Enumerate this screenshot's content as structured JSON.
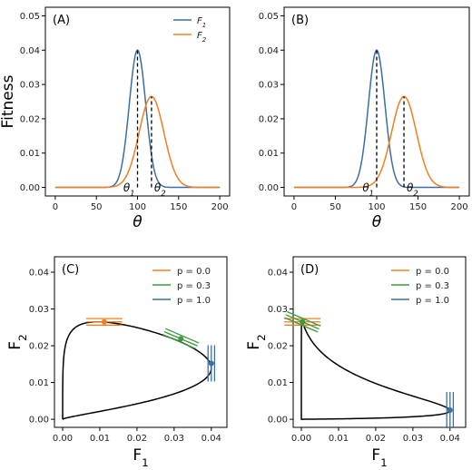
{
  "colors": {
    "blue": "#3b6ea5",
    "orange": "#f07f1f",
    "green": "#3c9a3c",
    "black": "#000000"
  },
  "chart_data": [
    {
      "panel": "(A)",
      "type": "line",
      "xlabel": "θ",
      "ylabel": "Fitness",
      "xlim": [
        -12,
        212
      ],
      "ylim": [
        -0.0025,
        0.0525
      ],
      "xticks": [
        0,
        50,
        100,
        150,
        200
      ],
      "yticks": [
        0.0,
        0.01,
        0.02,
        0.03,
        0.04,
        0.05
      ],
      "ytick_labels": [
        "0.00",
        "0.01",
        "0.02",
        "0.03",
        "0.04",
        "0.05"
      ],
      "legend_position": "top-right",
      "series": [
        {
          "name": "F",
          "sub": "1",
          "color": "blue",
          "mu": 100,
          "sigma": 10,
          "peak": 0.04
        },
        {
          "name": "F",
          "sub": "2",
          "color": "orange",
          "mu": 117,
          "sigma": 15,
          "peak": 0.0265
        }
      ],
      "optima": [
        {
          "label": "θ",
          "sub": "1",
          "x": 100,
          "side": "left"
        },
        {
          "label": "θ",
          "sub": "2",
          "x": 117,
          "side": "right"
        }
      ]
    },
    {
      "panel": "(B)",
      "type": "line",
      "xlabel": "θ",
      "ylabel": "",
      "xlim": [
        -12,
        212
      ],
      "ylim": [
        -0.0025,
        0.0525
      ],
      "xticks": [
        0,
        50,
        100,
        150,
        200
      ],
      "yticks": [
        0.0,
        0.01,
        0.02,
        0.03,
        0.04,
        0.05
      ],
      "ytick_labels": [
        "0.00",
        "0.01",
        "0.02",
        "0.03",
        "0.04",
        "0.05"
      ],
      "series": [
        {
          "color": "blue",
          "mu": 100,
          "sigma": 10,
          "peak": 0.04
        },
        {
          "color": "orange",
          "mu": 133,
          "sigma": 15,
          "peak": 0.0265
        }
      ],
      "optima": [
        {
          "label": "θ",
          "sub": "1",
          "x": 100,
          "side": "left"
        },
        {
          "label": "θ",
          "sub": "2",
          "x": 133,
          "side": "right"
        }
      ]
    },
    {
      "panel": "(C)",
      "type": "line",
      "xlabel": "F",
      "xlabel_sub": "1",
      "ylabel": "F",
      "ylabel_sub": "2",
      "xlim": [
        -0.0022,
        0.0442
      ],
      "ylim": [
        -0.0022,
        0.0442
      ],
      "xticks": [
        0.0,
        0.01,
        0.02,
        0.03,
        0.04
      ],
      "xtick_labels": [
        "0.00",
        "0.01",
        "0.02",
        "0.03",
        "0.04"
      ],
      "yticks": [
        0.0,
        0.01,
        0.02,
        0.03,
        0.04
      ],
      "ytick_labels": [
        "0.00",
        "0.01",
        "0.02",
        "0.03",
        "0.04"
      ],
      "legend_position": "top-right",
      "legend": [
        {
          "label": "p = 0.0",
          "color": "orange"
        },
        {
          "label": "p = 0.3",
          "color": "green"
        },
        {
          "label": "p = 1.0",
          "color": "blue"
        }
      ],
      "curve": {
        "mu1": 100,
        "s1": 10,
        "A1": 0.04,
        "mu2": 117,
        "s2": 15,
        "A2": 0.0265,
        "theta_min": 0,
        "theta_max": 200
      },
      "optimum_points": [
        {
          "p": 0.0,
          "x": 0.0112,
          "y": 0.0265,
          "color": "orange"
        },
        {
          "p": 0.3,
          "x": 0.0318,
          "y": 0.0219,
          "color": "green"
        },
        {
          "p": 1.0,
          "x": 0.04,
          "y": 0.0152,
          "color": "blue"
        }
      ]
    },
    {
      "panel": "(D)",
      "type": "line",
      "xlabel": "F",
      "xlabel_sub": "1",
      "ylabel": "F",
      "ylabel_sub": "2",
      "xlim": [
        -0.0022,
        0.0442
      ],
      "ylim": [
        -0.0022,
        0.0442
      ],
      "xticks": [
        0.0,
        0.01,
        0.02,
        0.03,
        0.04
      ],
      "xtick_labels": [
        "0.00",
        "0.01",
        "0.02",
        "0.03",
        "0.04"
      ],
      "yticks": [
        0.0,
        0.01,
        0.02,
        0.03,
        0.04
      ],
      "ytick_labels": [
        "0.00",
        "0.01",
        "0.02",
        "0.03",
        "0.04"
      ],
      "legend_position": "top-right",
      "legend": [
        {
          "label": "p = 0.0",
          "color": "orange"
        },
        {
          "label": "p = 0.3",
          "color": "green"
        },
        {
          "label": "p = 1.0",
          "color": "blue"
        }
      ],
      "curve": {
        "mu1": 100,
        "s1": 10,
        "A1": 0.04,
        "mu2": 133,
        "s2": 15,
        "A2": 0.0265,
        "theta_min": 0,
        "theta_max": 200
      },
      "optimum_points": [
        {
          "p": 0.0,
          "x": 0.0003,
          "y": 0.0265,
          "color": "orange"
        },
        {
          "p": 0.3,
          "x": 0.0003,
          "y": 0.0265,
          "color": "green"
        },
        {
          "p": 1.0,
          "x": 0.04,
          "y": 0.0025,
          "color": "blue"
        }
      ]
    }
  ]
}
